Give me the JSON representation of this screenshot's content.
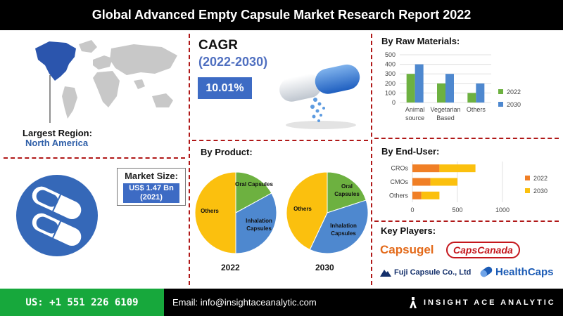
{
  "header": {
    "title": "Global Advanced Empty Capsule Market Research Report 2022"
  },
  "region": {
    "label": "Largest Region:",
    "value": "North America"
  },
  "market_size": {
    "label": "Market Size:",
    "value_line1": "US$ 1.47 Bn",
    "value_line2": "(2021)"
  },
  "cagr": {
    "title": "CAGR",
    "years": "(2022-2030)",
    "value": "10.01%"
  },
  "colors": {
    "blue": "#4e88cf",
    "green": "#6db140",
    "yellow": "#fbc00e",
    "orange": "#f07f26",
    "map_highlight": "#2b55ad",
    "divider": "#b01818"
  },
  "chart_data": [
    {
      "type": "bar",
      "title": "By Raw Materials:",
      "categories": [
        "Animal source",
        "Vegetarian Based",
        "Others"
      ],
      "series": [
        {
          "name": "2022",
          "values": [
            300,
            200,
            100
          ]
        },
        {
          "name": "2030",
          "values": [
            400,
            300,
            200
          ]
        }
      ],
      "ylim": [
        0,
        500
      ],
      "yticks": [
        "0",
        "100",
        "200",
        "300",
        "400",
        "500"
      ],
      "legend": "right"
    },
    {
      "type": "bar",
      "orientation": "horizontal",
      "stacked": true,
      "title": "By End-User:",
      "categories": [
        "CROs",
        "CMOs",
        "Others"
      ],
      "series": [
        {
          "name": "2022",
          "values": [
            300,
            200,
            100
          ]
        },
        {
          "name": "2030",
          "values": [
            400,
            300,
            200
          ]
        }
      ],
      "xlim": [
        0,
        1000
      ],
      "xticks": [
        "0",
        "500",
        "1000"
      ],
      "legend": "right"
    },
    {
      "type": "pie",
      "title": "By Product:",
      "year": "2022",
      "slices": [
        {
          "label": "Oral Capsules",
          "value": 17
        },
        {
          "label": "Inhalation Capsules",
          "value": 33
        },
        {
          "label": "Others",
          "value": 50
        }
      ]
    },
    {
      "type": "pie",
      "year": "2030",
      "slices": [
        {
          "label": "Oral Capsules",
          "value": 20
        },
        {
          "label": "Inhalation Capsules",
          "value": 37
        },
        {
          "label": "Others",
          "value": 43
        }
      ]
    }
  ],
  "key_players": {
    "title": "Key Players:",
    "names": [
      "Capsugel",
      "CapsCanada",
      "Fuji Capsule Co., Ltd",
      "HealthCaps"
    ]
  },
  "footer": {
    "phone": "US: +1 551 226 6109",
    "email": "Email: info@insightaceanalytic.com",
    "brand": "INSIGHT ACE ANALYTIC"
  }
}
